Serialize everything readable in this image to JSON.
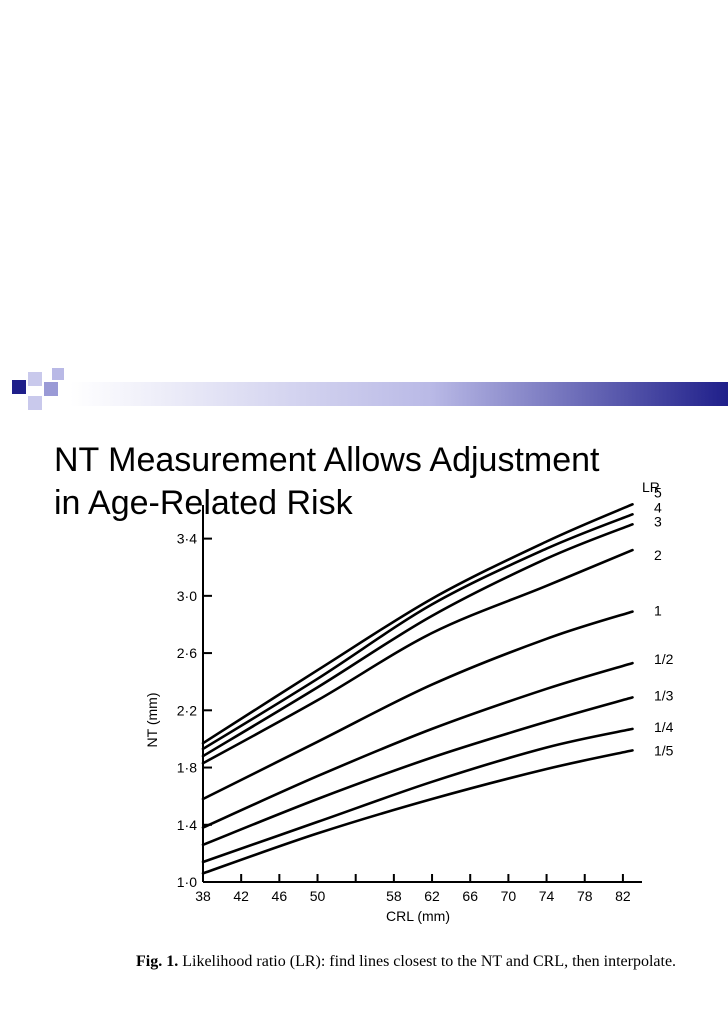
{
  "slide": {
    "title_line1": "NT Measurement Allows Adjustment",
    "title_line2": "in Age-Related Risk",
    "accent_colors": [
      "#1f1f8a",
      "#9a9ad6",
      "#c9c9ec"
    ]
  },
  "caption": {
    "fig_label": "Fig. 1.",
    "text": " Likelihood ratio (LR): find lines closest to the NT and CRL, then interpolate."
  },
  "chart_data": {
    "type": "line",
    "xlabel": "CRL (mm)",
    "ylabel": "NT (mm)",
    "legend_title": "LR",
    "xlim": [
      38,
      84
    ],
    "ylim": [
      1.0,
      3.6
    ],
    "x_ticks": [
      "38",
      "42",
      "46",
      "50",
      "54",
      "58",
      "62",
      "66",
      "70",
      "74",
      "78",
      "82"
    ],
    "x_tick_labels": [
      "38",
      "42",
      "46",
      "50",
      "",
      "58",
      "62",
      "66",
      "70",
      "74",
      "78",
      "82"
    ],
    "y_ticks": [
      "1.0",
      "1.4",
      "1.8",
      "2.2",
      "2.6",
      "3.0",
      "3.4"
    ],
    "y_tick_labels": [
      "1·0",
      "1·4",
      "1·8",
      "2·2",
      "2·6",
      "3·0",
      "3·4"
    ],
    "x": [
      38,
      50,
      62,
      74,
      83
    ],
    "series": [
      {
        "name": "5",
        "values": [
          1.97,
          2.48,
          2.98,
          3.38,
          3.64
        ]
      },
      {
        "name": "4",
        "values": [
          1.93,
          2.42,
          2.94,
          3.33,
          3.57
        ]
      },
      {
        "name": "3",
        "values": [
          1.88,
          2.36,
          2.86,
          3.26,
          3.5
        ]
      },
      {
        "name": "2",
        "values": [
          1.83,
          2.27,
          2.74,
          3.07,
          3.32
        ]
      },
      {
        "name": "1",
        "values": [
          1.58,
          1.98,
          2.38,
          2.7,
          2.89
        ]
      },
      {
        "name": "1/2",
        "values": [
          1.38,
          1.74,
          2.07,
          2.35,
          2.53
        ]
      },
      {
        "name": "1/3",
        "values": [
          1.26,
          1.58,
          1.87,
          2.12,
          2.29
        ]
      },
      {
        "name": "1/4",
        "values": [
          1.14,
          1.42,
          1.7,
          1.94,
          2.07
        ]
      },
      {
        "name": "1/5",
        "values": [
          1.06,
          1.34,
          1.58,
          1.79,
          1.92
        ]
      }
    ]
  }
}
